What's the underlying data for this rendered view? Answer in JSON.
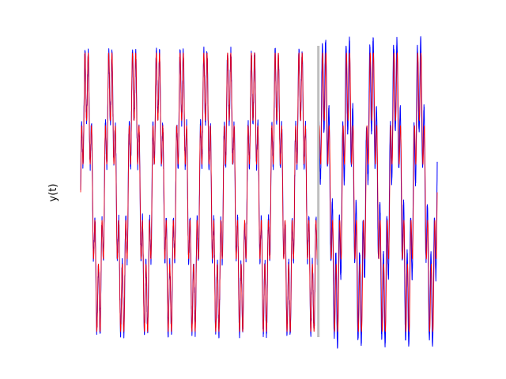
{
  "chart_data": {
    "type": "line",
    "title": "",
    "xlabel": "",
    "ylabel": "y(t)",
    "grid": false,
    "axes_visible": false,
    "xlim": [
      0,
      15
    ],
    "ylim": [
      -1.1,
      1.1
    ],
    "split_x": 10,
    "split_line_color": "#bfbfbf",
    "period": 1,
    "fundamental_amplitude": 0.85,
    "harmonic_amplitude": 0.3,
    "harmonic_multiplier": 7,
    "series": [
      {
        "color": "#0000ff",
        "x_range": [
          0,
          15
        ],
        "noise_in_x_range": [
          0,
          10
        ],
        "role": "observed"
      },
      {
        "color": "#ff0000",
        "x_range": [
          0,
          15
        ],
        "role": "model"
      }
    ]
  }
}
